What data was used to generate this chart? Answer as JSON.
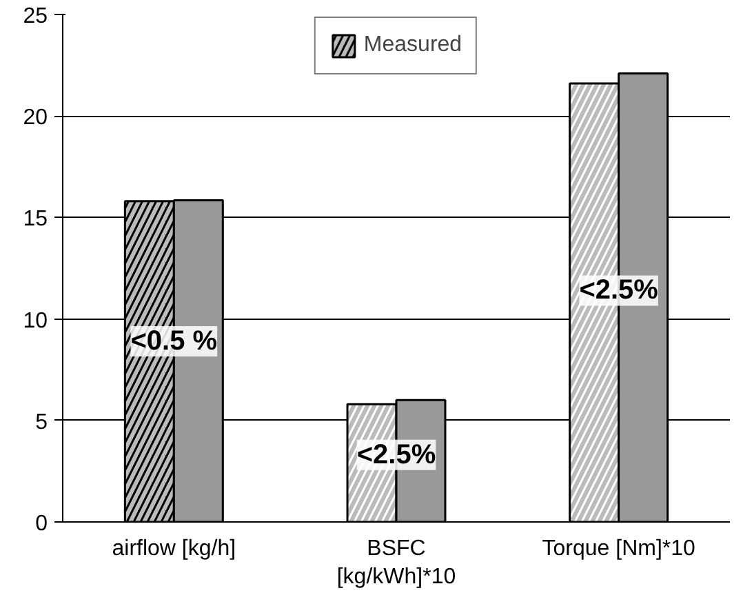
{
  "chart_data": {
    "type": "bar",
    "categories": [
      "airflow [kg/h]",
      "BSFC\n[kg/kWh]*10",
      "Torque [Nm]*10"
    ],
    "series": [
      {
        "name": "Measured",
        "colors": [
          "#000000",
          "#ffffff",
          "#ffffff"
        ],
        "values": [
          15.8,
          5.8,
          21.6
        ]
      },
      {
        "color": "#999999",
        "values": [
          15.85,
          6.0,
          22.1
        ]
      }
    ],
    "ylim": [
      0,
      25
    ],
    "yticks": [
      0,
      5,
      10,
      15,
      20,
      25
    ],
    "grid": "y",
    "legend": "top",
    "annotations": [
      {
        "text": "<0.5 %",
        "x": "airflow [kg/h]",
        "y": 8.9
      },
      {
        "text": "<2.5%",
        "x": "BSFC\n[kg/kWh]*10",
        "y": 3.3
      },
      {
        "text": "<2.5%",
        "x": "Torque [Nm]*10",
        "y": 11.4
      }
    ]
  }
}
